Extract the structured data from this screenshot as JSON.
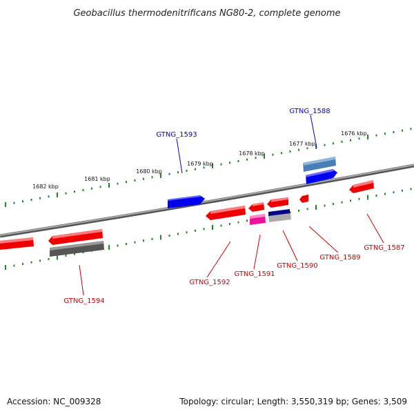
{
  "title": "Geobacillus thermodenitrificans NG80-2, complete genome",
  "footer": {
    "accession": "Accession: NC_009328",
    "topology": "Topology: circular; Length: 3,550,319 bp; Genes: 3,509"
  },
  "ruler": {
    "labels": [
      "1682 kbp",
      "1681 kbp",
      "1680 kbp",
      "1679 kbp",
      "1678 kbp",
      "1677 kbp",
      "1676 kbp"
    ]
  },
  "genes": [
    {
      "name": "GTNG_1593",
      "color": "#0000cc"
    },
    {
      "name": "GTNG_1588",
      "color": "#0000cc"
    },
    {
      "name": "GTNG_1594",
      "color": "#cc0000"
    },
    {
      "name": "GTNG_1592",
      "color": "#cc0000"
    },
    {
      "name": "GTNG_1591",
      "color": "#cc0000"
    },
    {
      "name": "GTNG_1590",
      "color": "#cc0000"
    },
    {
      "name": "GTNG_1589",
      "color": "#cc0000"
    },
    {
      "name": "GTNG_1587",
      "color": "#cc0000"
    }
  ],
  "colors": {
    "forward_gene": "#0000ee",
    "reverse_gene": "#ee0000",
    "rna_gene": "#ee1199",
    "pseudo_gene": "#555555",
    "tick": "#1a8a1a",
    "backbone": "#888888"
  }
}
